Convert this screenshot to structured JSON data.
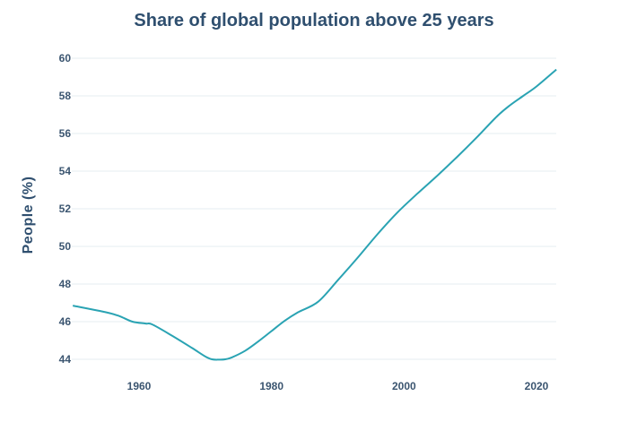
{
  "chart_data": {
    "type": "line",
    "title": "Share of global population above 25 years",
    "xlabel": "",
    "ylabel": "People (%)",
    "xlim": [
      1950,
      2023
    ],
    "ylim": [
      43.2,
      61
    ],
    "yticks": [
      44,
      46,
      48,
      50,
      52,
      54,
      56,
      58,
      60
    ],
    "xticks": [
      1960,
      1980,
      2000,
      2020
    ],
    "grid": true,
    "line_color": "#2aa3b3",
    "series": [
      {
        "x": [
          1950,
          1955,
          1957,
          1959,
          1961,
          1962,
          1965,
          1968,
          1970,
          1971,
          1972,
          1973,
          1974,
          1976,
          1978,
          1980,
          1982,
          1984,
          1987,
          1990,
          1993,
          1996,
          1999,
          2002,
          2005,
          2008,
          2011,
          2014,
          2016,
          2018,
          2020,
          2023
        ],
        "y": [
          46.85,
          46.5,
          46.3,
          46.0,
          45.9,
          45.85,
          45.25,
          44.6,
          44.15,
          44.0,
          43.98,
          44.0,
          44.1,
          44.45,
          44.95,
          45.5,
          46.05,
          46.5,
          47.05,
          48.2,
          49.4,
          50.65,
          51.8,
          52.8,
          53.75,
          54.75,
          55.8,
          56.9,
          57.5,
          58.0,
          58.5,
          59.4
        ]
      }
    ]
  }
}
